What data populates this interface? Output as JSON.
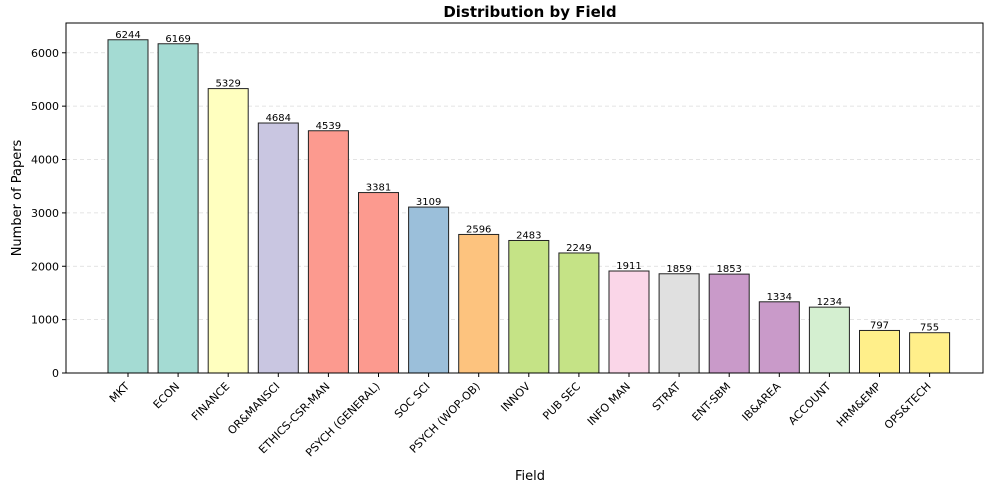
{
  "chart_data": {
    "type": "bar",
    "title": "Distribution by Field",
    "xlabel": "Field",
    "ylabel": "Number of Papers",
    "ylim": [
      0,
      6558
    ],
    "yticks": [
      0,
      1000,
      2000,
      3000,
      4000,
      5000,
      6000
    ],
    "grid": true,
    "categories": [
      "MKT",
      "ECON",
      "FINANCE",
      "OR&MANSCI",
      "ETHICS-CSR-MAN",
      "PSYCH (GENERAL)",
      "SOC SCI",
      "PSYCH (WOP-OB)",
      "INNOV",
      "PUB SEC",
      "INFO MAN",
      "STRAT",
      "ENT-SBM",
      "IB&AREA",
      "ACCOUNT",
      "HRM&EMP",
      "OPS&TECH"
    ],
    "values": [
      6244,
      6169,
      5329,
      4684,
      4539,
      3381,
      3109,
      2596,
      2483,
      2249,
      1911,
      1859,
      1853,
      1334,
      1234,
      797,
      755
    ],
    "colors": [
      "#a4dbd3",
      "#a4dbd3",
      "#ffffbf",
      "#c9c6e1",
      "#fc9a8f",
      "#fc9a8f",
      "#9bbfda",
      "#fdc37e",
      "#c5e386",
      "#c5e386",
      "#fad6e8",
      "#e0e0e0",
      "#c99ac9",
      "#c99ac9",
      "#d4efd0",
      "#ffef8a",
      "#ffef8a"
    ]
  }
}
